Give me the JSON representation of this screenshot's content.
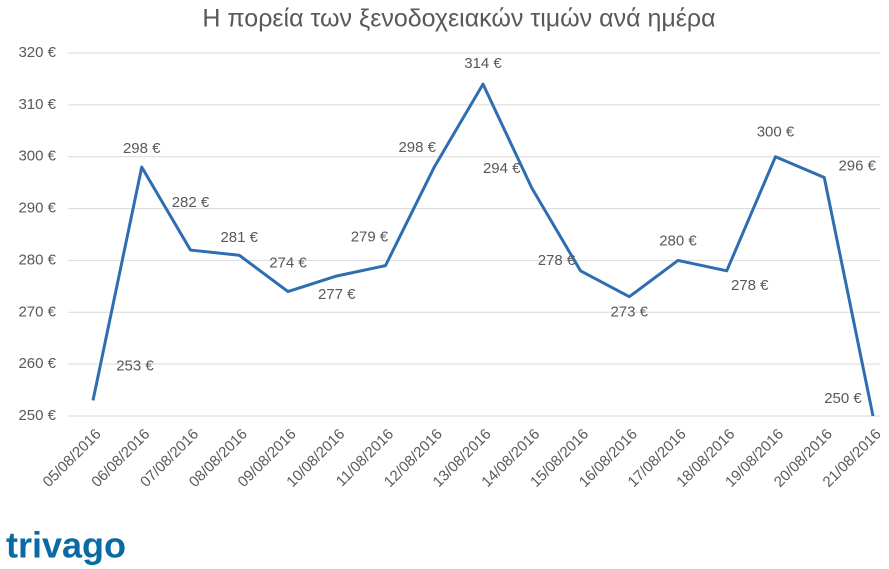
{
  "chart_data": {
    "type": "line",
    "title": "Η πορεία των ξενοδοχειακών τιμών ανά ημέρα",
    "categories": [
      "05/08/2016",
      "06/08/2016",
      "07/08/2016",
      "08/08/2016",
      "09/08/2016",
      "10/08/2016",
      "11/08/2016",
      "12/08/2016",
      "13/08/2016",
      "14/08/2016",
      "15/08/2016",
      "16/08/2016",
      "17/08/2016",
      "18/08/2016",
      "19/08/2016",
      "20/08/2016",
      "21/08/2016"
    ],
    "series": [
      {
        "color": "#2e6eb0",
        "values": [
          253,
          298,
          282,
          281,
          274,
          277,
          279,
          298,
          314,
          294,
          278,
          273,
          280,
          278,
          300,
          296,
          250
        ],
        "value_labels": [
          "253 €",
          "298 €",
          "282 €",
          "281 €",
          "274 €",
          "277 €",
          "279 €",
          "298 €",
          "314 €",
          "294 €",
          "278 €",
          "273 €",
          "280 €",
          "278 €",
          "300 €",
          "296 €",
          "250 €"
        ]
      }
    ],
    "ylim": [
      250,
      320
    ],
    "yticks": [
      {
        "value": 250,
        "label": "250 €"
      },
      {
        "value": 260,
        "label": "260 €"
      },
      {
        "value": 270,
        "label": "270 €"
      },
      {
        "value": 280,
        "label": "280 €"
      },
      {
        "value": 290,
        "label": "290 €"
      },
      {
        "value": 300,
        "label": "300 €"
      },
      {
        "value": 310,
        "label": "310 €"
      },
      {
        "value": 320,
        "label": "320 €"
      }
    ],
    "grid": true,
    "brand": "trivago"
  }
}
